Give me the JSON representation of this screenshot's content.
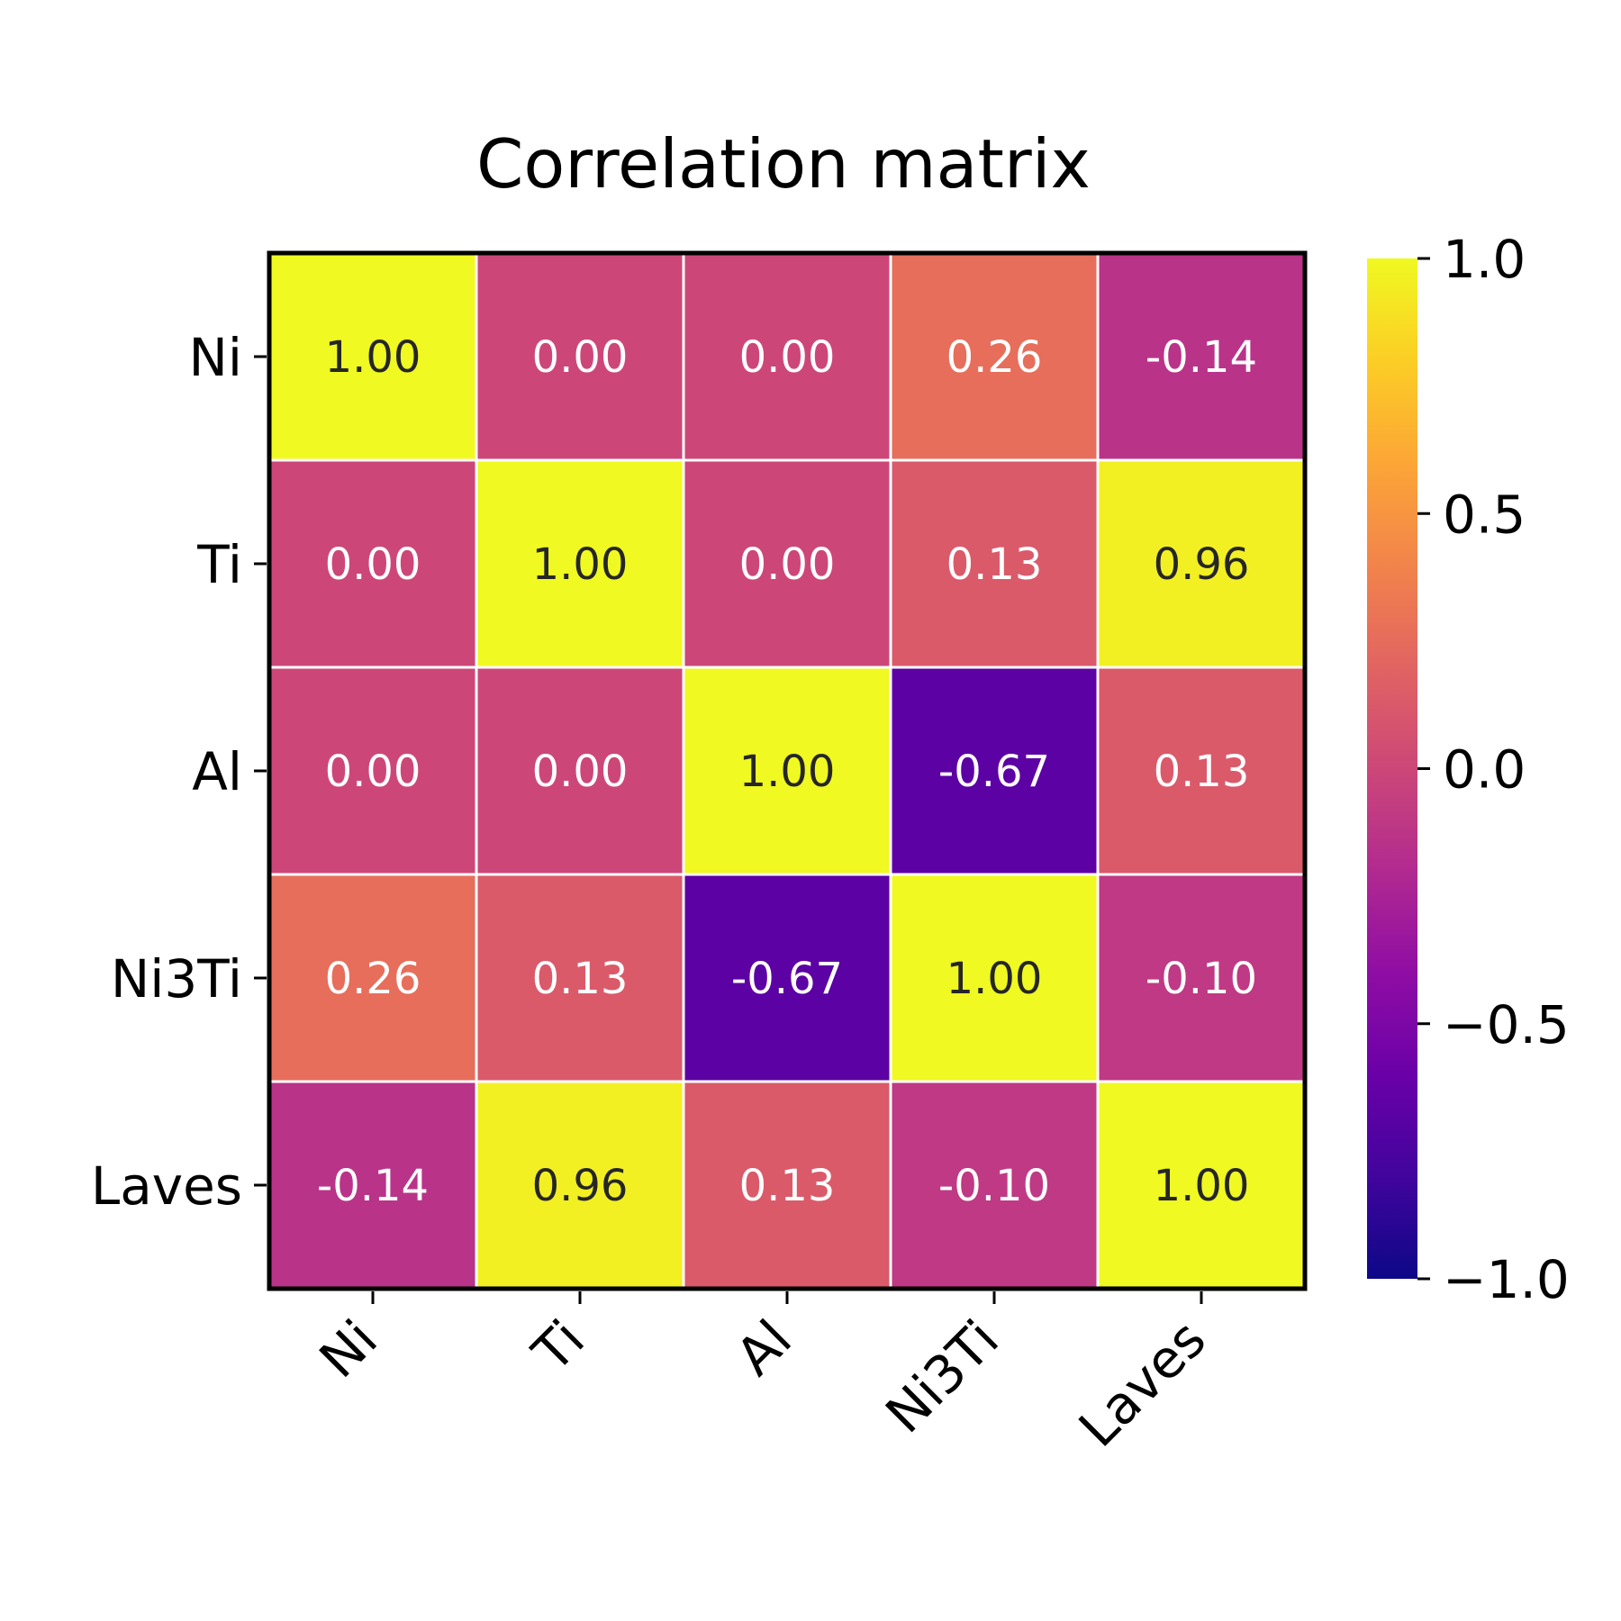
{
  "chart_data": {
    "type": "heatmap",
    "title": "Correlation matrix",
    "x_categories": [
      "Ni",
      "Ti",
      "Al",
      "Ni3Ti",
      "Laves"
    ],
    "y_categories": [
      "Ni",
      "Ti",
      "Al",
      "Ni3Ti",
      "Laves"
    ],
    "values": [
      [
        1.0,
        0.0,
        0.0,
        0.26,
        -0.14
      ],
      [
        0.0,
        1.0,
        0.0,
        0.13,
        0.96
      ],
      [
        0.0,
        0.0,
        1.0,
        -0.67,
        0.13
      ],
      [
        0.26,
        0.13,
        -0.67,
        1.0,
        -0.1
      ],
      [
        -0.14,
        0.96,
        0.13,
        -0.1,
        1.0
      ]
    ],
    "value_format_decimals": 2,
    "colormap": "plasma",
    "color_range": [
      -1.0,
      1.0
    ],
    "colorbar": {
      "ticks": [
        1.0,
        0.5,
        0.0,
        -0.5,
        -1.0
      ],
      "tick_labels": [
        "1.0",
        "0.5",
        "0.0",
        "−0.5",
        "−1.0"
      ]
    },
    "x_tick_rotation_deg": 45,
    "cell_separator_color": "#ffffff"
  }
}
